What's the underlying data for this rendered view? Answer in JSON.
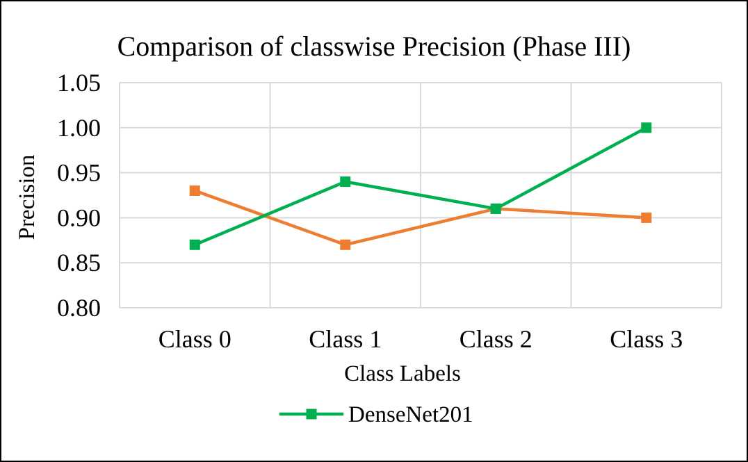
{
  "chart_data": {
    "type": "line",
    "title": "Comparison of classwise Precision (Phase III)",
    "xlabel": "Class Labels",
    "ylabel": "Precision",
    "categories": [
      "Class 0",
      "Class 1",
      "Class 2",
      "Class 3"
    ],
    "ylim": [
      0.8,
      1.05
    ],
    "yticks": [
      "0.80",
      "0.85",
      "0.90",
      "0.95",
      "1.00",
      "1.05"
    ],
    "grid": true,
    "legend_position": "bottom",
    "series": [
      {
        "name": "DenseNet201",
        "color": "#00b050",
        "marker": "square",
        "values": [
          0.87,
          0.94,
          0.91,
          1.0
        ]
      },
      {
        "color": "#ed7d31",
        "marker": "square",
        "values": [
          0.93,
          0.87,
          0.91,
          0.9
        ]
      }
    ]
  }
}
